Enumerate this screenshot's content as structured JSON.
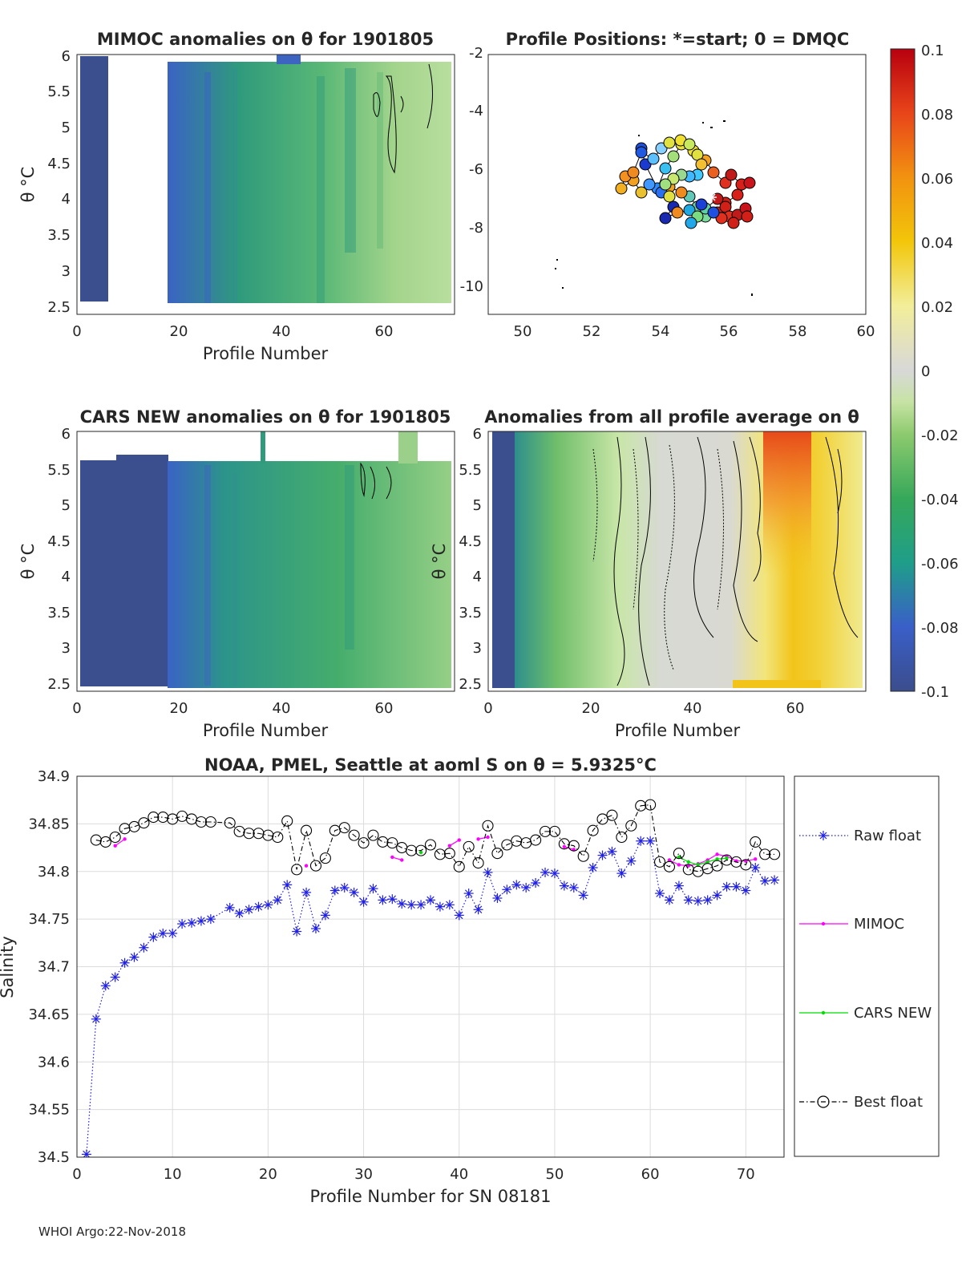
{
  "footer": "WHOI Argo:22-Nov-2018",
  "panels": {
    "mimoc": {
      "title": "MIMOC anomalies on θ  for 1901805",
      "xlabel": "Profile Number",
      "ylabel": "θ °C",
      "xticks": [
        "0",
        "20",
        "40",
        "60"
      ],
      "yticks": [
        "2.5",
        "3",
        "3.5",
        "4",
        "4.5",
        "5",
        "5.5",
        "6"
      ]
    },
    "positions": {
      "title": "Profile Positions: *=start; 0 = DMQC",
      "xticks": [
        "50",
        "52",
        "54",
        "56",
        "58",
        "60"
      ],
      "yticks": [
        "-2",
        "-4",
        "-6",
        "-8",
        "-10"
      ]
    },
    "cars": {
      "title": "CARS NEW anomalies on θ for 1901805",
      "xlabel": "Profile Number",
      "ylabel": "θ °C",
      "xticks": [
        "0",
        "20",
        "40",
        "60"
      ],
      "yticks": [
        "2.5",
        "3",
        "3.5",
        "4",
        "4.5",
        "5",
        "5.5",
        "6"
      ]
    },
    "average": {
      "title": "Anomalies from all profile average on θ",
      "xlabel": "Profile Number",
      "ylabel": "θ °C",
      "xticks": [
        "0",
        "20",
        "40",
        "60"
      ],
      "yticks": [
        "2.5",
        "3",
        "3.5",
        "4",
        "4.5",
        "5",
        "5.5",
        "6"
      ]
    }
  },
  "colorbar": {
    "ticks": [
      "0.1",
      "0.08",
      "0.06",
      "0.04",
      "0.02",
      "0",
      "-0.02",
      "-0.04",
      "-0.06",
      "-0.08",
      "-0.1"
    ]
  },
  "colors": {
    "raw_float": "#1f1fe6",
    "mimoc": "#ff00ff",
    "cars_new": "#00dd00",
    "best_float": "#000000"
  },
  "chart_data": {
    "type": "line",
    "title": "NOAA, PMEL, Seattle at aoml S on θ = 5.9325°C",
    "xlabel": "Profile Number for SN 08181",
    "ylabel": "Salinity",
    "xlim": [
      0,
      74
    ],
    "ylim": [
      34.5,
      34.9
    ],
    "xticks": [
      "0",
      "10",
      "20",
      "30",
      "40",
      "50",
      "60",
      "70"
    ],
    "yticks": [
      "34.5",
      "34.55",
      "34.6",
      "34.65",
      "34.7",
      "34.75",
      "34.8",
      "34.85",
      "34.9"
    ],
    "grid": true,
    "legend_position": "right",
    "series": [
      {
        "name": "Raw float",
        "style": "dotted-star",
        "x": [
          1,
          2,
          3,
          4,
          5,
          6,
          7,
          8,
          9,
          10,
          11,
          12,
          13,
          14,
          16,
          17,
          18,
          19,
          20,
          21,
          22,
          23,
          24,
          25,
          26,
          27,
          28,
          29,
          30,
          31,
          32,
          33,
          34,
          35,
          36,
          37,
          38,
          39,
          40,
          41,
          42,
          43,
          44,
          45,
          46,
          47,
          48,
          49,
          50,
          51,
          52,
          53,
          54,
          55,
          56,
          57,
          58,
          59,
          60,
          61,
          62,
          63,
          64,
          65,
          66,
          67,
          68,
          69,
          70,
          71,
          72,
          73
        ],
        "y": [
          34.503,
          34.645,
          34.68,
          34.689,
          34.704,
          34.71,
          34.72,
          34.731,
          34.735,
          34.735,
          34.745,
          34.746,
          34.748,
          34.75,
          34.762,
          34.756,
          34.76,
          34.763,
          34.765,
          34.77,
          34.786,
          34.737,
          34.778,
          34.74,
          34.754,
          34.78,
          34.783,
          34.778,
          34.768,
          34.782,
          34.77,
          34.771,
          34.766,
          34.765,
          34.765,
          34.77,
          34.763,
          34.765,
          34.754,
          34.777,
          34.76,
          34.799,
          34.772,
          34.781,
          34.786,
          34.783,
          34.788,
          34.799,
          34.798,
          34.785,
          34.783,
          34.775,
          34.804,
          34.817,
          34.821,
          34.798,
          34.811,
          34.832,
          34.832,
          34.777,
          34.77,
          34.785,
          34.77,
          34.769,
          34.77,
          34.775,
          34.784,
          34.784,
          34.78,
          34.804,
          34.79,
          34.791
        ]
      },
      {
        "name": "MIMOC",
        "style": "solid-dot",
        "segments": [
          {
            "x": [
              4,
              5
            ],
            "y": [
              34.827,
              34.834
            ]
          },
          {
            "x": [
              24
            ],
            "y": [
              34.806
            ]
          },
          {
            "x": [
              33,
              34
            ],
            "y": [
              34.815,
              34.812
            ]
          },
          {
            "x": [
              39,
              40
            ],
            "y": [
              34.827,
              34.833
            ]
          },
          {
            "x": [
              42,
              43
            ],
            "y": [
              34.834,
              34.836
            ]
          },
          {
            "x": [
              51,
              52
            ],
            "y": [
              34.826,
              34.823
            ]
          },
          {
            "x": [
              62,
              63,
              64,
              65,
              66,
              67,
              68,
              69,
              70,
              71
            ],
            "y": [
              34.812,
              34.807,
              34.806,
              34.808,
              34.812,
              34.818,
              34.816,
              34.811,
              34.811,
              34.813
            ]
          }
        ]
      },
      {
        "name": "CARS NEW",
        "style": "solid-dot",
        "segments": [
          {
            "x": [
              36
            ],
            "y": [
              34.82
            ]
          },
          {
            "x": [
              63,
              64,
              65,
              66,
              67,
              68
            ],
            "y": [
              34.815,
              34.81,
              34.807,
              34.81,
              34.813,
              34.814
            ]
          }
        ]
      },
      {
        "name": "Best float",
        "style": "dashdot-circle",
        "x": [
          2,
          3,
          4,
          5,
          6,
          7,
          8,
          9,
          10,
          11,
          12,
          13,
          14,
          16,
          17,
          18,
          19,
          20,
          21,
          22,
          23,
          24,
          25,
          26,
          27,
          28,
          29,
          30,
          31,
          32,
          33,
          34,
          35,
          36,
          37,
          38,
          39,
          40,
          41,
          42,
          43,
          44,
          45,
          46,
          47,
          48,
          49,
          50,
          51,
          52,
          53,
          54,
          55,
          56,
          57,
          58,
          59,
          60,
          61,
          62,
          63,
          64,
          65,
          66,
          67,
          68,
          69,
          70,
          71,
          72,
          73
        ],
        "y": [
          34.833,
          34.831,
          34.836,
          34.845,
          34.847,
          34.851,
          34.857,
          34.857,
          34.855,
          34.858,
          34.855,
          34.852,
          34.852,
          34.851,
          34.842,
          34.84,
          34.84,
          34.838,
          34.836,
          34.853,
          34.802,
          34.843,
          34.806,
          34.814,
          34.843,
          34.846,
          34.838,
          34.83,
          34.838,
          34.831,
          34.83,
          34.825,
          34.822,
          34.822,
          34.828,
          34.818,
          34.819,
          34.805,
          34.826,
          34.809,
          34.848,
          34.819,
          34.828,
          34.832,
          34.83,
          34.833,
          34.842,
          34.842,
          34.829,
          34.827,
          34.816,
          34.843,
          34.855,
          34.859,
          34.836,
          34.848,
          34.869,
          34.87,
          34.81,
          34.805,
          34.819,
          34.802,
          34.8,
          34.803,
          34.806,
          34.812,
          34.81,
          34.807,
          34.831,
          34.818,
          34.818
        ]
      }
    ]
  }
}
